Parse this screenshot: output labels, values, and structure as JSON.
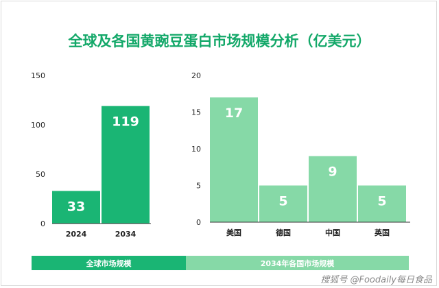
{
  "title": "全球及各国黄豌豆蛋白市场规模分析（亿美元）",
  "chart_data": [
    {
      "type": "bar",
      "categories": [
        "2024",
        "2034"
      ],
      "values": [
        33,
        119
      ],
      "ylim": [
        0,
        150
      ],
      "yticks": [
        0,
        50,
        100,
        150
      ],
      "color": "#1ab574",
      "label": "全球市场规模"
    },
    {
      "type": "bar",
      "categories": [
        "美国",
        "德国",
        "中国",
        "英国"
      ],
      "values": [
        17,
        5,
        9,
        5
      ],
      "ylim": [
        0,
        20
      ],
      "yticks": [
        0,
        5,
        10,
        15,
        20
      ],
      "color": "#86d9a7",
      "label": "2034年各国市场规模"
    }
  ],
  "watermark": "搜狐号 @Foodaily每日食品"
}
